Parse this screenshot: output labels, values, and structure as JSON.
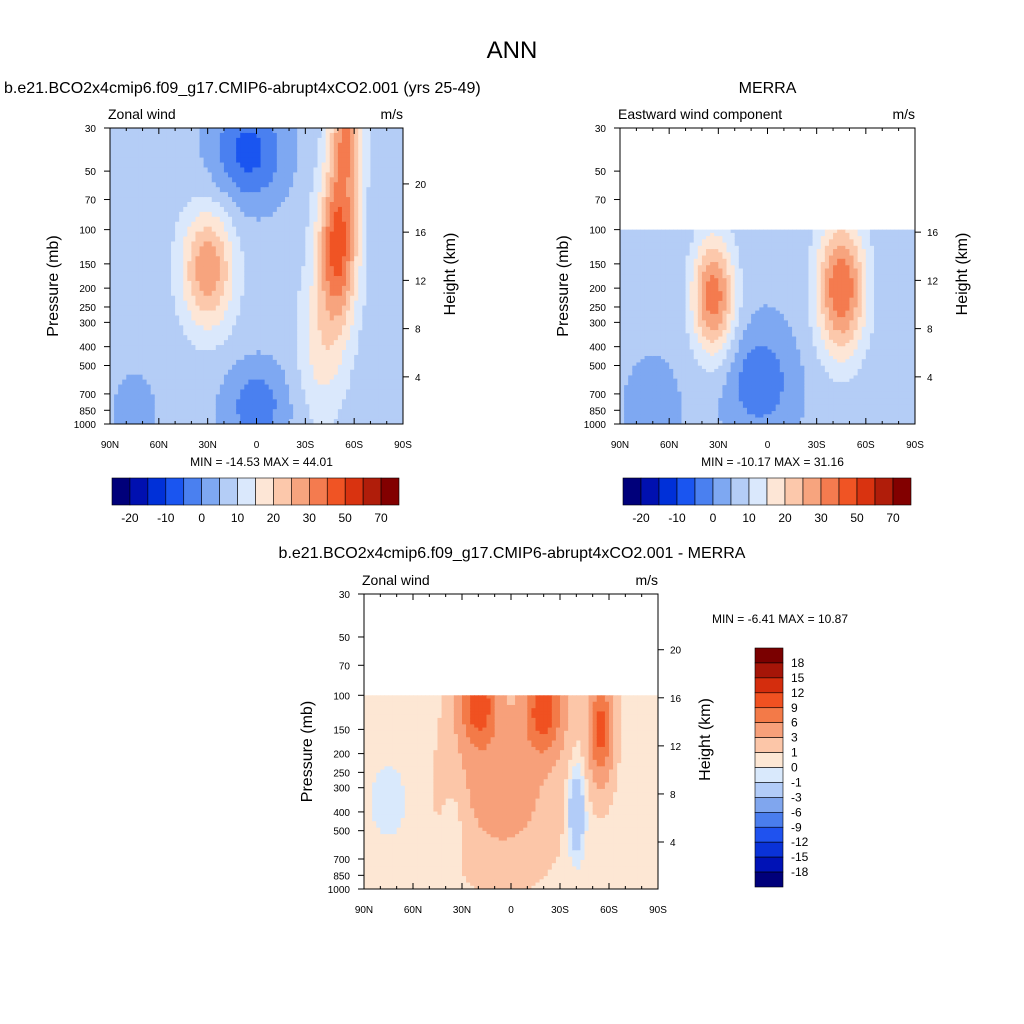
{
  "page_title": "ANN",
  "colors": {
    "absolute_palette": [
      "#00007a",
      "#0010b0",
      "#0030d8",
      "#1a55f0",
      "#4a80f0",
      "#7ea8f2",
      "#b4cdf6",
      "#dae8fc",
      "#fde6d6",
      "#fcc8ab",
      "#f7a47e",
      "#f47b4f",
      "#f05424",
      "#d93310",
      "#b01d0a",
      "#820000"
    ],
    "diff_palette": [
      "#00007a",
      "#0012b6",
      "#0a32d8",
      "#1f52ef",
      "#4a7ded",
      "#80a6ee",
      "#b2ccf8",
      "#d9e9fc",
      "#fde7d4",
      "#fcc6a8",
      "#f7a07a",
      "#f37a48",
      "#f05121",
      "#d42d0d",
      "#a51508",
      "#7a0000"
    ]
  },
  "panels": [
    {
      "title": "b.e21.BCO2x4cmip6.f09_g17.CMIP6-abrupt4xCO2.001 (yrs 25-49)",
      "left_label": "Zonal wind",
      "right_label": "m/s",
      "ylabel": "Pressure (mb)",
      "ylabel_right": "Height (km)",
      "pressure_ticks": [
        "30",
        "50",
        "70",
        "100",
        "150",
        "200",
        "250",
        "300",
        "400",
        "500",
        "700",
        "850",
        "1000"
      ],
      "height_ticks": [
        "20",
        "16",
        "12",
        "8",
        "4"
      ],
      "lat_ticks": [
        "90N",
        "60N",
        "30N",
        "0",
        "30S",
        "60S",
        "90S"
      ],
      "stats": "MIN = -14.53  MAX =  44.01",
      "colorbar_labels": [
        "-20",
        "-10",
        "0",
        "10",
        "20",
        "30",
        "50",
        "70"
      ]
    },
    {
      "title": "MERRA",
      "left_label": "Eastward wind component",
      "right_label": "m/s",
      "ylabel": "Pressure (mb)",
      "ylabel_right": "Height (km)",
      "pressure_ticks": [
        "30",
        "50",
        "70",
        "100",
        "150",
        "200",
        "250",
        "300",
        "400",
        "500",
        "700",
        "850",
        "1000"
      ],
      "height_ticks": [
        "16",
        "12",
        "8",
        "4"
      ],
      "lat_ticks": [
        "90N",
        "60N",
        "30N",
        "0",
        "30S",
        "60S",
        "90S"
      ],
      "stats": "MIN = -10.17  MAX =  31.16",
      "colorbar_labels": [
        "-20",
        "-10",
        "0",
        "10",
        "20",
        "30",
        "50",
        "70"
      ]
    },
    {
      "title": "b.e21.BCO2x4cmip6.f09_g17.CMIP6-abrupt4xCO2.001 - MERRA",
      "left_label": "Zonal wind",
      "right_label": "m/s",
      "ylabel": "Pressure (mb)",
      "ylabel_right": "Height (km)",
      "pressure_ticks": [
        "30",
        "50",
        "70",
        "100",
        "150",
        "200",
        "250",
        "300",
        "400",
        "500",
        "700",
        "850",
        "1000"
      ],
      "height_ticks": [
        "20",
        "16",
        "12",
        "8",
        "4"
      ],
      "lat_ticks": [
        "90N",
        "60N",
        "30N",
        "0",
        "30S",
        "60S",
        "90S"
      ],
      "stats": "MIN =  -6.41  MAX =  10.87",
      "colorbar_labels": [
        "18",
        "15",
        "12",
        "9",
        "6",
        "3",
        "1",
        "0",
        "-1",
        "-3",
        "-6",
        "-9",
        "-12",
        "-15",
        "-18"
      ]
    }
  ],
  "chart_data": [
    {
      "type": "heatmap",
      "title": "b.e21.BCO2x4cmip6.f09_g17.CMIP6-abrupt4xCO2.001 (yrs 25-49)",
      "xlabel": "",
      "ylabel": "Pressure (mb)",
      "x_ticks": [
        "90N",
        "60N",
        "30N",
        "0",
        "30S",
        "60S",
        "90S"
      ],
      "ylim": [
        1000,
        30
      ],
      "log_scale_y": true,
      "colorbar_levels": [
        -20,
        -10,
        0,
        10,
        20,
        30,
        50,
        70
      ],
      "min": -14.53,
      "max": 44.01,
      "features": [
        {
          "lat": -55,
          "p": 30,
          "u": 44
        },
        {
          "lat": -50,
          "p": 150,
          "u": 35
        },
        {
          "lat": 30,
          "p": 150,
          "u": 24
        },
        {
          "lat": 5,
          "p": 35,
          "u": -14
        },
        {
          "lat": 0,
          "p": 850,
          "u": -8
        }
      ]
    },
    {
      "type": "heatmap",
      "title": "MERRA",
      "xlabel": "",
      "ylabel": "Pressure (mb)",
      "x_ticks": [
        "90N",
        "60N",
        "30N",
        "0",
        "30S",
        "60S",
        "90S"
      ],
      "ylim": [
        1000,
        30
      ],
      "log_scale_y": true,
      "data_top_mb": 100,
      "colorbar_levels": [
        -20,
        -10,
        0,
        10,
        20,
        30,
        50,
        70
      ],
      "min": -10.17,
      "max": 31.16,
      "features": [
        {
          "lat": 33,
          "p": 200,
          "u": 29
        },
        {
          "lat": -45,
          "p": 200,
          "u": 31
        },
        {
          "lat": 5,
          "p": 600,
          "u": -9
        }
      ]
    },
    {
      "type": "heatmap",
      "title": "b.e21.BCO2x4cmip6.f09_g17.CMIP6-abrupt4xCO2.001 - MERRA",
      "xlabel": "",
      "ylabel": "Pressure (mb)",
      "x_ticks": [
        "90N",
        "60N",
        "30N",
        "0",
        "30S",
        "60S",
        "90S"
      ],
      "ylim": [
        1000,
        30
      ],
      "log_scale_y": true,
      "data_top_mb": 100,
      "colorbar_levels": [
        -18,
        -15,
        -12,
        -9,
        -6,
        -3,
        -1,
        0,
        1,
        3,
        6,
        9,
        12,
        15,
        18
      ],
      "min": -6.41,
      "max": 10.87,
      "features": [
        {
          "lat": 20,
          "p": 110,
          "u": 10
        },
        {
          "lat": -20,
          "p": 120,
          "u": 10
        },
        {
          "lat": -55,
          "p": 150,
          "u": 10
        },
        {
          "lat": -40,
          "p": 400,
          "u": -3
        },
        {
          "lat": 75,
          "p": 400,
          "u": -1
        },
        {
          "lat": 35,
          "p": 400,
          "u": -1
        }
      ]
    }
  ]
}
